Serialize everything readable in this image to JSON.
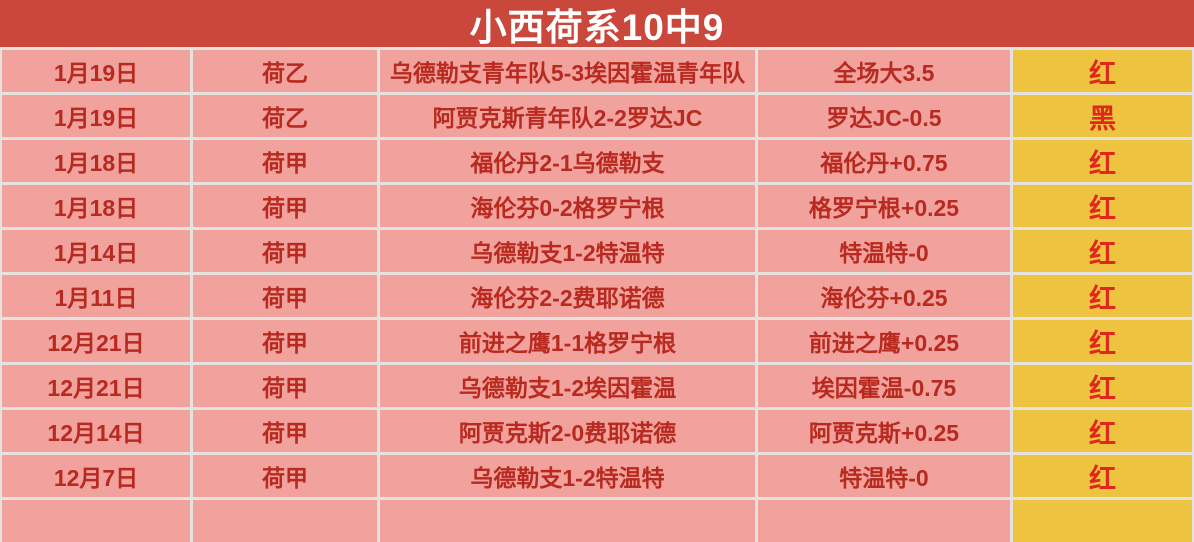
{
  "title": "小西荷系10中9",
  "colors": {
    "header_bg": "#c9473b",
    "title_text": "#ffffff",
    "row_bg": "#f1a29d",
    "row_text": "#b8291f",
    "result_bg": "#eec33f",
    "result_text": "#e1261c",
    "grid_line": "#e5e2e0"
  },
  "chart_data": {
    "type": "table",
    "title": "小西荷系10中9",
    "columns": [
      "date",
      "league",
      "match",
      "pick",
      "result"
    ],
    "rows": [
      {
        "date": "1月19日",
        "league": "荷乙",
        "match": "乌德勒支青年队5-3埃因霍温青年队",
        "pick": "全场大3.5",
        "result": "红"
      },
      {
        "date": "1月19日",
        "league": "荷乙",
        "match": "阿贾克斯青年队2-2罗达JC",
        "pick": "罗达JC-0.5",
        "result": "黑"
      },
      {
        "date": "1月18日",
        "league": "荷甲",
        "match": "福伦丹2-1乌德勒支",
        "pick": "福伦丹+0.75",
        "result": "红"
      },
      {
        "date": "1月18日",
        "league": "荷甲",
        "match": "海伦芬0-2格罗宁根",
        "pick": "格罗宁根+0.25",
        "result": "红"
      },
      {
        "date": "1月14日",
        "league": "荷甲",
        "match": "乌德勒支1-2特温特",
        "pick": "特温特-0",
        "result": "红"
      },
      {
        "date": "1月11日",
        "league": "荷甲",
        "match": "海伦芬2-2费耶诺德",
        "pick": "海伦芬+0.25",
        "result": "红"
      },
      {
        "date": "12月21日",
        "league": "荷甲",
        "match": "前进之鹰1-1格罗宁根",
        "pick": "前进之鹰+0.25",
        "result": "红"
      },
      {
        "date": "12月21日",
        "league": "荷甲",
        "match": "乌德勒支1-2埃因霍温",
        "pick": "埃因霍温-0.75",
        "result": "红"
      },
      {
        "date": "12月14日",
        "league": "荷甲",
        "match": "阿贾克斯2-0费耶诺德",
        "pick": "阿贾克斯+0.25",
        "result": "红"
      },
      {
        "date": "12月7日",
        "league": "荷甲",
        "match": "乌德勒支1-2特温特",
        "pick": "特温特-0",
        "result": "红"
      }
    ]
  }
}
